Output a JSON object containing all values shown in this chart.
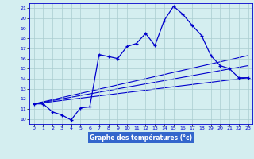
{
  "title": "Graphe des températures (°c)",
  "bg_color": "#d4eef0",
  "line_color": "#0000cc",
  "grid_color": "#aaccd0",
  "xlim": [
    -0.5,
    23.5
  ],
  "ylim": [
    9.5,
    21.5
  ],
  "xticks": [
    0,
    1,
    2,
    3,
    4,
    5,
    6,
    7,
    8,
    9,
    10,
    11,
    12,
    13,
    14,
    15,
    16,
    17,
    18,
    19,
    20,
    21,
    22,
    23
  ],
  "yticks": [
    10,
    11,
    12,
    13,
    14,
    15,
    16,
    17,
    18,
    19,
    20,
    21
  ],
  "curve_x": [
    0,
    1,
    2,
    3,
    4,
    5,
    6,
    7,
    8,
    9,
    10,
    11,
    12,
    13,
    14,
    15,
    16,
    17,
    18,
    19,
    20,
    21,
    22,
    23
  ],
  "curve_y": [
    11.5,
    11.5,
    10.7,
    10.4,
    9.9,
    11.1,
    11.2,
    16.4,
    16.2,
    16.0,
    17.2,
    17.5,
    18.5,
    17.3,
    19.8,
    21.2,
    20.4,
    19.3,
    18.3,
    16.3,
    15.3,
    15.0,
    14.1,
    14.1
  ],
  "line1_x": [
    0,
    23
  ],
  "line1_y": [
    11.5,
    16.3
  ],
  "line2_x": [
    0,
    23
  ],
  "line2_y": [
    11.5,
    15.3
  ],
  "line3_x": [
    0,
    23
  ],
  "line3_y": [
    11.5,
    14.1
  ],
  "xlabel_bg": "#3366cc",
  "xlabel_fg": "#ffffff"
}
